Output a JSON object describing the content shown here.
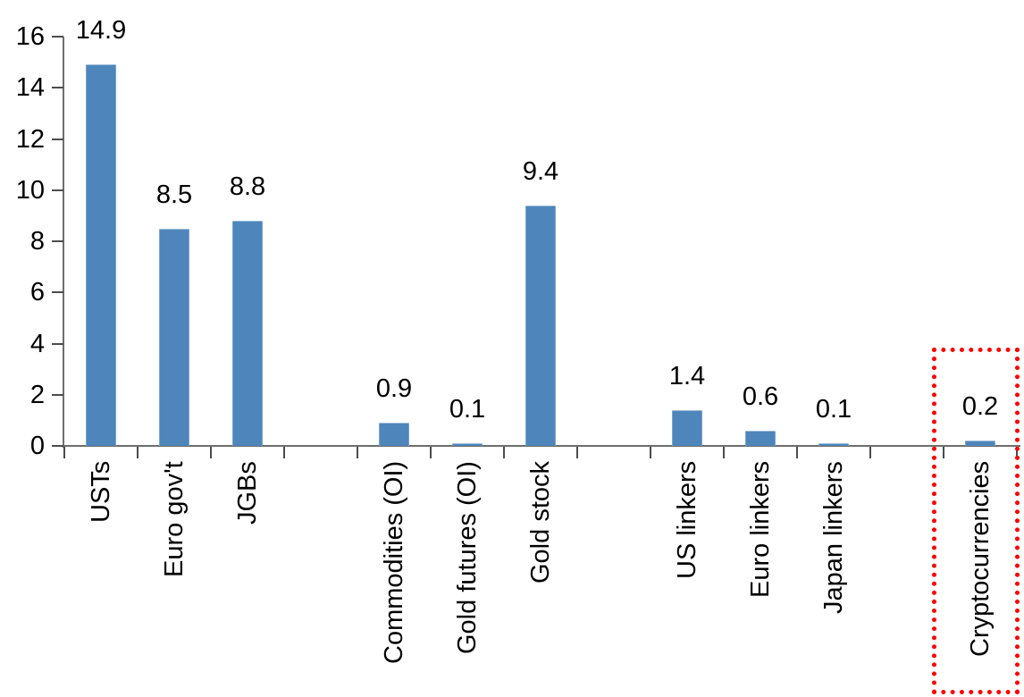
{
  "chart": {
    "bar_color": "#4E86BB",
    "highlight_color": "#FF0000",
    "axis_color": "#6E6E6E",
    "tick_color": "#4C4C4C",
    "text_color": "#000000"
  },
  "chart_data": {
    "type": "bar",
    "title": "",
    "xlabel": "",
    "ylabel": "",
    "ylim": [
      0,
      16
    ],
    "ytick_step": 2,
    "yticks": [
      0,
      2,
      4,
      6,
      8,
      10,
      12,
      14,
      16
    ],
    "grid": false,
    "value_labels_shown": true,
    "x_labels_rotated_90": true,
    "categories": [
      "USTs",
      "Euro gov't",
      "JGBs",
      "Commodities (OI)",
      "Gold futures (OI)",
      "Gold stock",
      "US linkers",
      "Euro linkers",
      "Japan linkers",
      "Cryptocurrencies"
    ],
    "values": [
      14.9,
      8.5,
      8.8,
      0.9,
      0.1,
      9.4,
      1.4,
      0.6,
      0.1,
      0.2
    ],
    "groups": [
      {
        "bars": [
          {
            "label": "USTs",
            "value": 14.9
          },
          {
            "label": "Euro gov't",
            "value": 8.5
          },
          {
            "label": "JGBs",
            "value": 8.8
          }
        ]
      },
      {
        "bars": [
          {
            "label": "Commodities (OI)",
            "value": 0.9
          },
          {
            "label": "Gold futures (OI)",
            "value": 0.1
          },
          {
            "label": "Gold stock",
            "value": 9.4
          }
        ]
      },
      {
        "bars": [
          {
            "label": "US linkers",
            "value": 1.4
          },
          {
            "label": "Euro linkers",
            "value": 0.6
          },
          {
            "label": "Japan linkers",
            "value": 0.1
          }
        ]
      },
      {
        "bars": [
          {
            "label": "Cryptocurrencies",
            "value": 0.2
          }
        ]
      }
    ],
    "highlight": {
      "category": "Cryptocurrencies",
      "style": "red dotted rectangle"
    }
  }
}
